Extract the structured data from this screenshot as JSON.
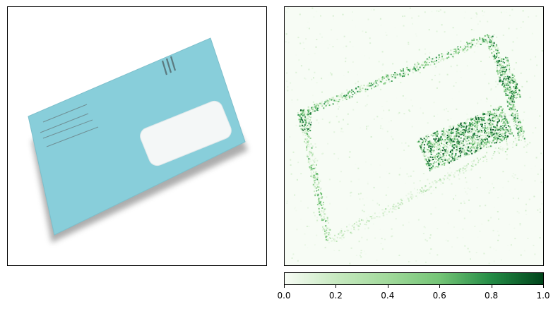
{
  "figure": {
    "left_panel": {
      "content": "photo",
      "subject": "envelope",
      "frame": true,
      "axis_ticks": false
    },
    "right_panel": {
      "content": "heatmap",
      "colormap": "Greens",
      "frame": true,
      "axis_ticks": false
    }
  },
  "chart_data": {
    "type": "heatmap",
    "colormap": "Greens",
    "colors": {
      "low": "#f7fcf5",
      "mid": "#74c476",
      "high": "#00441b"
    },
    "colorbar": {
      "orientation": "horizontal",
      "range": [
        0.0,
        1.0
      ],
      "ticks": [
        0.0,
        0.2,
        0.4,
        0.6,
        0.8,
        1.0
      ],
      "tick_labels": [
        "0.0",
        "0.2",
        "0.4",
        "0.6",
        "0.8",
        "1.0"
      ]
    },
    "title": "",
    "xlabel": "",
    "ylabel": ""
  },
  "envelope": {
    "color": "#88ceda",
    "window_color": "#f4f7f7",
    "stamp_marks": 3
  }
}
